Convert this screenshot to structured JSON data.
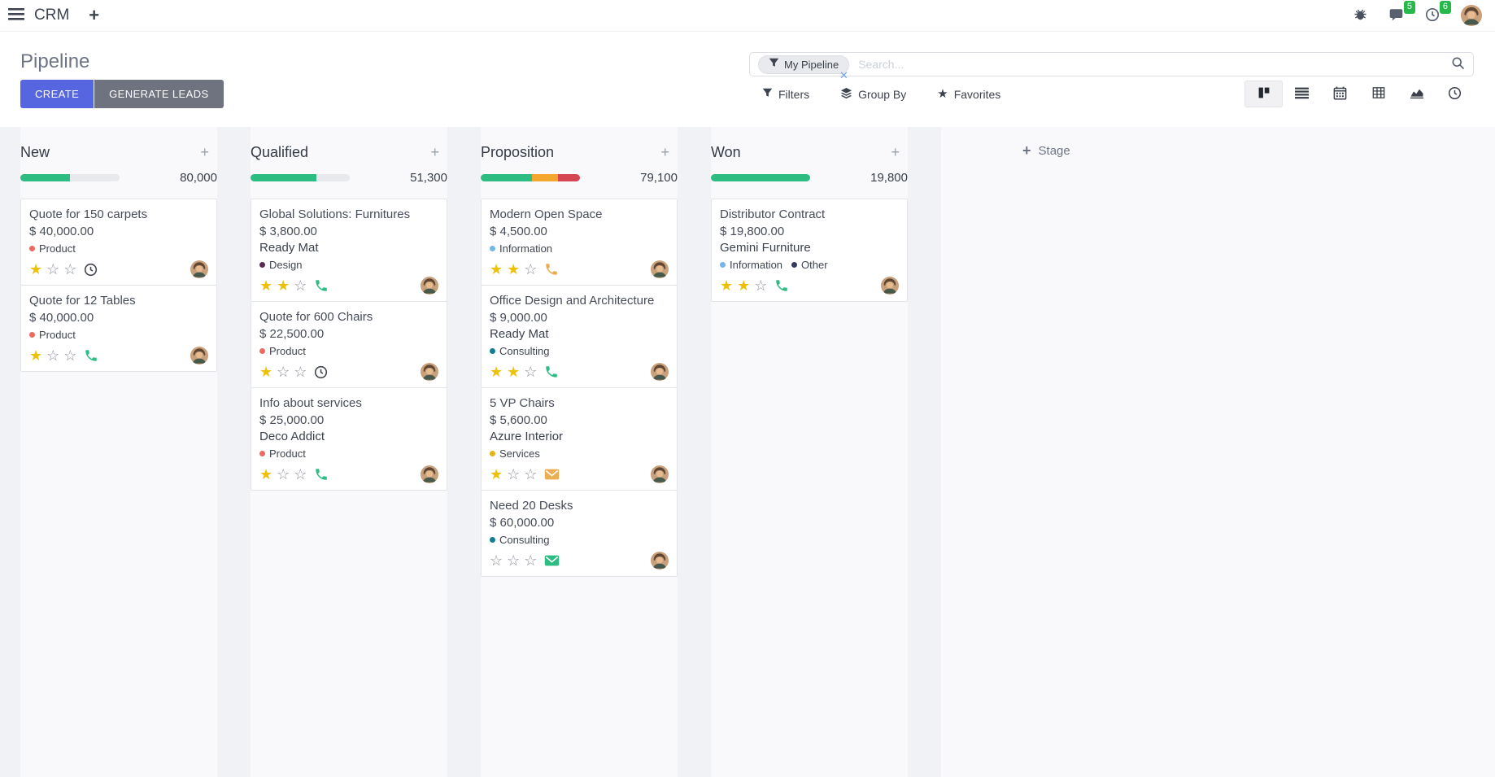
{
  "navbar": {
    "app": "CRM",
    "messages_badge": "5",
    "activities_badge": "6"
  },
  "control_panel": {
    "title": "Pipeline",
    "create_label": "CREATE",
    "generate_leads_label": "GENERATE LEADS",
    "search": {
      "facet_label": "My Pipeline",
      "placeholder": "Search..."
    },
    "filters_label": "Filters",
    "group_by_label": "Group By",
    "favorites_label": "Favorites"
  },
  "view_switcher": {
    "items": [
      "kanban",
      "list",
      "calendar",
      "pivot",
      "graph",
      "activity"
    ],
    "active": "kanban"
  },
  "colors": {
    "create_button": "#5666e0",
    "generate_button": "#6f7380",
    "badge_green": "#26b84b",
    "progress_green": "#2dbd83",
    "progress_orange": "#f3a72e",
    "progress_red": "#d64552",
    "star_filled": "#efc00a"
  },
  "board": {
    "add_stage_label": "Stage",
    "columns": [
      {
        "name": "New",
        "total": "80,000",
        "progress": [
          {
            "color": "#2dbd83",
            "pct": 50
          },
          {
            "color": "#e8e9ec",
            "pct": 50
          }
        ],
        "cards": [
          {
            "title": "Quote for 150 carpets",
            "amount": "$ 40,000.00",
            "partner": null,
            "tags": [
              {
                "label": "Product",
                "color": "#ec6a5f"
              }
            ],
            "stars": 1,
            "activity": {
              "type": "clock",
              "color": "#41464f"
            }
          },
          {
            "title": "Quote for 12 Tables",
            "amount": "$ 40,000.00",
            "partner": null,
            "tags": [
              {
                "label": "Product",
                "color": "#ec6a5f"
              }
            ],
            "stars": 1,
            "activity": {
              "type": "phone",
              "color": "#2dbd83"
            }
          }
        ]
      },
      {
        "name": "Qualified",
        "total": "51,300",
        "progress": [
          {
            "color": "#2dbd83",
            "pct": 66
          },
          {
            "color": "#e8e9ec",
            "pct": 34
          }
        ],
        "cards": [
          {
            "title": "Global Solutions: Furnitures",
            "amount": "$ 3,800.00",
            "partner": "Ready Mat",
            "tags": [
              {
                "label": "Design",
                "color": "#5a2a50"
              }
            ],
            "stars": 2,
            "activity": {
              "type": "phone",
              "color": "#2dbd83"
            }
          },
          {
            "title": "Quote for 600 Chairs",
            "amount": "$ 22,500.00",
            "partner": null,
            "tags": [
              {
                "label": "Product",
                "color": "#ec6a5f"
              }
            ],
            "stars": 1,
            "activity": {
              "type": "clock",
              "color": "#41464f"
            }
          },
          {
            "title": "Info about services",
            "amount": "$ 25,000.00",
            "partner": "Deco Addict",
            "tags": [
              {
                "label": "Product",
                "color": "#ec6a5f"
              }
            ],
            "stars": 1,
            "activity": {
              "type": "phone",
              "color": "#2dbd83"
            }
          }
        ]
      },
      {
        "name": "Proposition",
        "total": "79,100",
        "progress": [
          {
            "color": "#2dbd83",
            "pct": 52
          },
          {
            "color": "#f3a72e",
            "pct": 26
          },
          {
            "color": "#d64552",
            "pct": 22
          }
        ],
        "cards": [
          {
            "title": "Modern Open Space",
            "amount": "$ 4,500.00",
            "partner": null,
            "tags": [
              {
                "label": "Information",
                "color": "#73b7e8"
              }
            ],
            "stars": 2,
            "activity": {
              "type": "phone",
              "color": "#eda94e"
            }
          },
          {
            "title": "Office Design and Architecture",
            "amount": "$ 9,000.00",
            "partner": "Ready Mat",
            "tags": [
              {
                "label": "Consulting",
                "color": "#137d8f"
              }
            ],
            "stars": 2,
            "activity": {
              "type": "phone",
              "color": "#2dbd83"
            }
          },
          {
            "title": "5 VP Chairs",
            "amount": "$ 5,600.00",
            "partner": "Azure Interior",
            "tags": [
              {
                "label": "Services",
                "color": "#e5b31b"
              }
            ],
            "stars": 1,
            "activity": {
              "type": "envelope",
              "color": "#ecae52"
            }
          },
          {
            "title": "Need 20 Desks",
            "amount": "$ 60,000.00",
            "partner": null,
            "tags": [
              {
                "label": "Consulting",
                "color": "#137d8f"
              }
            ],
            "stars": 0,
            "activity": {
              "type": "envelope",
              "color": "#2dbd83"
            }
          }
        ]
      },
      {
        "name": "Won",
        "total": "19,800",
        "progress": [
          {
            "color": "#2dbd83",
            "pct": 100
          }
        ],
        "cards": [
          {
            "title": "Distributor Contract",
            "amount": "$ 19,800.00",
            "partner": "Gemini Furniture",
            "tags": [
              {
                "label": "Information",
                "color": "#73b7e8"
              },
              {
                "label": "Other",
                "color": "#343b5e"
              }
            ],
            "stars": 2,
            "activity": {
              "type": "phone",
              "color": "#2dbd83"
            }
          }
        ]
      }
    ]
  }
}
